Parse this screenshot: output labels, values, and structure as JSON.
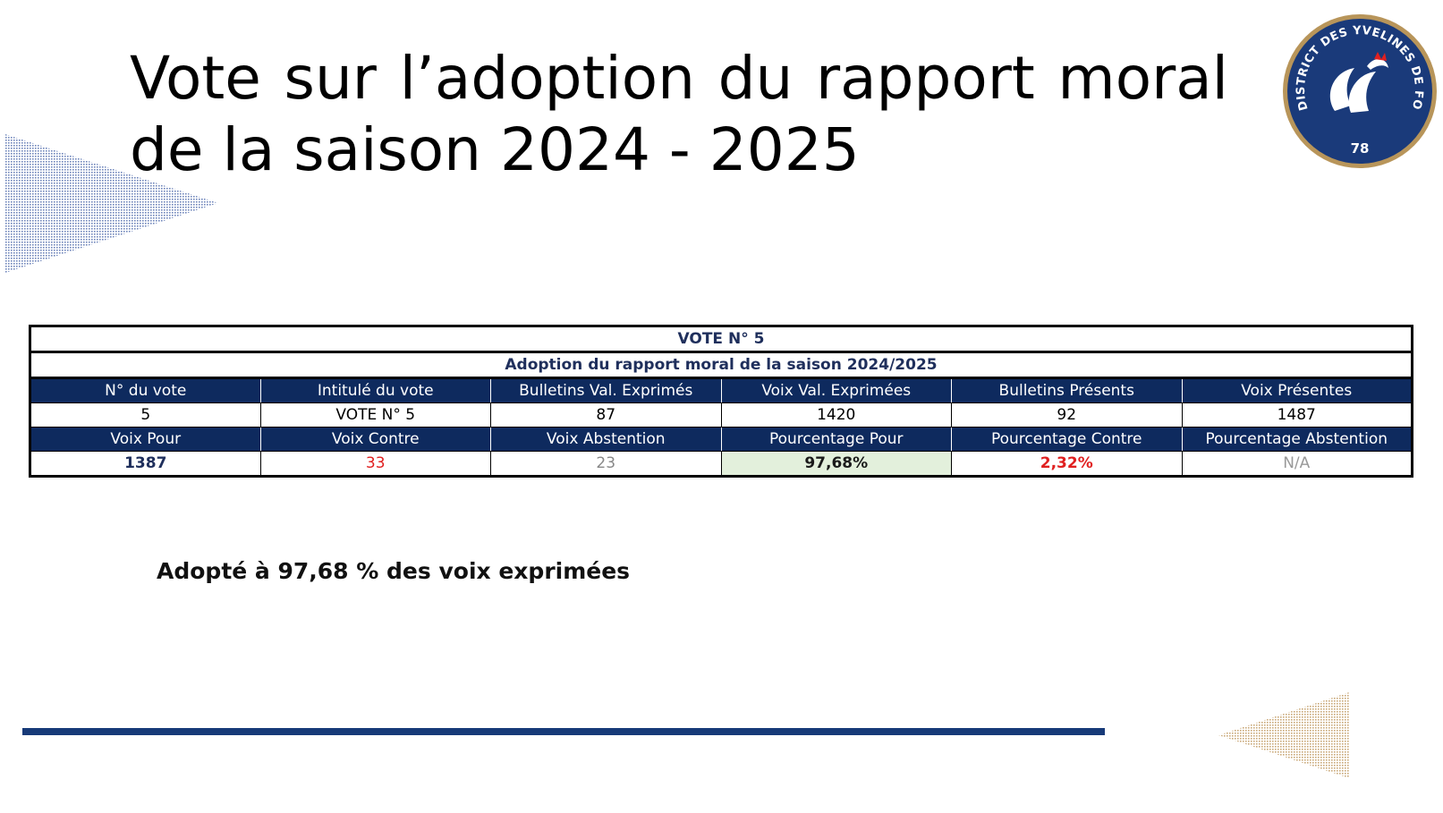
{
  "title": "Vote sur l’adoption du rapport moral de la saison 2024 - 2025",
  "logo": {
    "text": "DISTRICT DES YVELINES DE FOOTBALL",
    "number": "78",
    "colors": {
      "navy": "#1a3a7a",
      "gold": "#b8955a",
      "red": "#e02020"
    }
  },
  "table": {
    "vote_label": "VOTE N° 5",
    "subject": "Adoption du rapport moral de la saison 2024/2025",
    "header_row_1": [
      "N° du vote",
      "Intitulé du vote",
      "Bulletins Val. Exprimés",
      "Voix Val. Exprimées",
      "Bulletins Présents",
      "Voix Présentes"
    ],
    "values_row_1": [
      "5",
      "VOTE N° 5",
      "87",
      "1420",
      "92",
      "1487"
    ],
    "header_row_2": [
      "Voix Pour",
      "Voix Contre",
      "Voix Abstention",
      "Pourcentage Pour",
      "Pourcentage Contre",
      "Pourcentage Abstention"
    ],
    "values_row_2": [
      "1387",
      "33",
      "23",
      "97,68%",
      "2,32%",
      "N/A"
    ]
  },
  "result_text": "Adopté à 97,68 % des voix exprimées",
  "colors": {
    "header_bg": "#0e2a5e",
    "bar": "#173a78",
    "contre": "#e02020",
    "pour_pct_bg": "#e3f0dc",
    "left_triangle": "#7f93c2",
    "right_triangle": "#c9a878"
  }
}
